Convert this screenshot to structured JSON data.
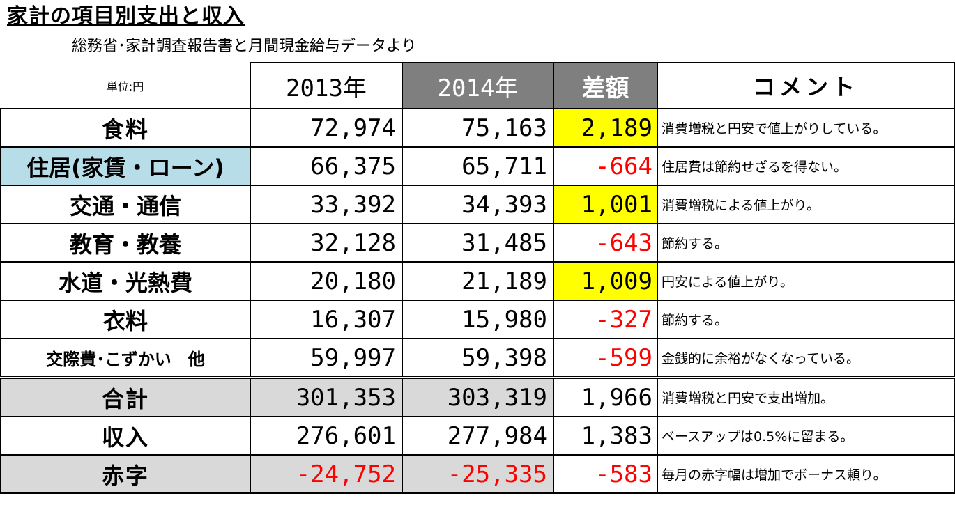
{
  "title": "家計の項目別支出と収入",
  "subtitle": "総務省･家計調査報告書と月間現金給与データより",
  "header": {
    "unit": "単位:円",
    "col_2013": "2013年",
    "col_2014": "2014年",
    "col_diff": "差額",
    "col_comment": "コメント"
  },
  "rows": [
    {
      "label": "食料",
      "y2013": "72,974",
      "y2014": "75,163",
      "diff": "2,189",
      "comment": "消費増税と円安で値上がりしている。"
    },
    {
      "label": "住居(家賃・ローン)",
      "y2013": "66,375",
      "y2014": "65,711",
      "diff": "-664",
      "comment": "住居費は節約せざるを得ない。"
    },
    {
      "label": "交通・通信",
      "y2013": "33,392",
      "y2014": "34,393",
      "diff": "1,001",
      "comment": "消費増税による値上がり。"
    },
    {
      "label": "教育・教養",
      "y2013": "32,128",
      "y2014": "31,485",
      "diff": "-643",
      "comment": "節約する。"
    },
    {
      "label": "水道・光熱費",
      "y2013": "20,180",
      "y2014": "21,189",
      "diff": "1,009",
      "comment": "円安による値上がり。"
    },
    {
      "label": "衣料",
      "y2013": "16,307",
      "y2014": "15,980",
      "diff": "-327",
      "comment": "節約する。"
    },
    {
      "label": "交際費･こずかい　他",
      "y2013": "59,997",
      "y2014": "59,398",
      "diff": "-599",
      "comment": "金銭的に余裕がなくなっている。"
    },
    {
      "label": "合計",
      "y2013": "301,353",
      "y2014": "303,319",
      "diff": "1,966",
      "comment": "消費増税と円安で支出増加。"
    },
    {
      "label": "収入",
      "y2013": "276,601",
      "y2014": "277,984",
      "diff": "1,383",
      "comment": "ベースアップは0.5%に留まる。"
    },
    {
      "label": "赤字",
      "y2013": "-24,752",
      "y2014": "-25,335",
      "diff": "-583",
      "comment": "毎月の赤字幅は増加でボーナス頼り。"
    }
  ],
  "colors": {
    "highlight": "#ffff00",
    "header_dark": "#7f7f7f",
    "row_blue": "#b7dde8",
    "row_grey": "#d9d9d9",
    "negative": "#ff0000"
  }
}
